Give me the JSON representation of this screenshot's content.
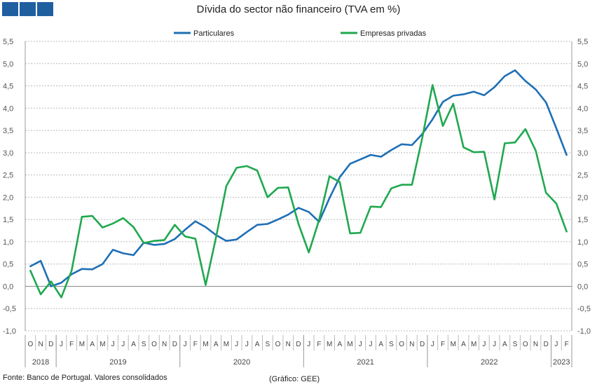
{
  "header": {
    "title": "Dívida do sector não financeiro (TVA em %)"
  },
  "footer": {
    "source": "Fonte: Banco de Portugal. Valores consolidados",
    "credit": "(Gráfico: GEE)"
  },
  "colors": {
    "particulares": "#1f6fb5",
    "empresas": "#1fa84f",
    "grid": "#bbbbbb",
    "logo": "#1f5fa0"
  },
  "chart_data": {
    "type": "line",
    "title": "Dívida do sector não financeiro (TVA em %)",
    "ylim": [
      -1.0,
      5.5
    ],
    "yticks": [
      "5,5",
      "5,0",
      "4,5",
      "4,0",
      "3,5",
      "3,0",
      "2,5",
      "2,0",
      "1,5",
      "1,0",
      "0,5",
      "0,0",
      "-0,5",
      "-1,0"
    ],
    "ytick_values": [
      5.5,
      5.0,
      4.5,
      4.0,
      3.5,
      3.0,
      2.5,
      2.0,
      1.5,
      1.0,
      0.5,
      0.0,
      -0.5,
      -1.0
    ],
    "grid": true,
    "legend_position": "top",
    "categories": [
      "O",
      "N",
      "D",
      "J",
      "F",
      "M",
      "A",
      "M",
      "J",
      "J",
      "A",
      "S",
      "O",
      "N",
      "D",
      "J",
      "F",
      "M",
      "A",
      "M",
      "J",
      "J",
      "A",
      "S",
      "O",
      "N",
      "D",
      "J",
      "F",
      "M",
      "A",
      "M",
      "J",
      "J",
      "A",
      "S",
      "O",
      "N",
      "D",
      "J",
      "F",
      "M",
      "A",
      "M",
      "J",
      "J",
      "A",
      "S",
      "O",
      "N",
      "D",
      "J",
      "F"
    ],
    "year_groups": [
      {
        "label": "2018",
        "count": 3
      },
      {
        "label": "2019",
        "count": 12
      },
      {
        "label": "2020",
        "count": 12
      },
      {
        "label": "2021",
        "count": 12
      },
      {
        "label": "2022",
        "count": 12
      },
      {
        "label": "2023",
        "count": 2
      }
    ],
    "series": [
      {
        "name": "Particulares",
        "color": "#1f6fb5",
        "values": [
          0.45,
          0.57,
          0.0,
          0.08,
          0.27,
          0.39,
          0.38,
          0.5,
          0.82,
          0.74,
          0.7,
          0.98,
          0.93,
          0.95,
          1.06,
          1.27,
          1.46,
          1.33,
          1.15,
          1.02,
          1.05,
          1.22,
          1.38,
          1.4,
          1.5,
          1.61,
          1.76,
          1.67,
          1.45,
          1.98,
          2.45,
          2.75,
          2.85,
          2.95,
          2.91,
          3.06,
          3.19,
          3.17,
          3.42,
          3.75,
          4.14,
          4.28,
          4.31,
          4.37,
          4.29,
          4.47,
          4.72,
          4.85,
          4.61,
          4.42,
          4.13,
          3.55,
          2.95
        ]
      },
      {
        "name": "Empresas privadas",
        "color": "#1fa84f",
        "values": [
          0.35,
          -0.18,
          0.11,
          -0.25,
          0.35,
          1.56,
          1.58,
          1.32,
          1.41,
          1.53,
          1.33,
          0.97,
          1.02,
          1.04,
          1.38,
          1.12,
          1.07,
          0.03,
          1.1,
          2.25,
          2.66,
          2.7,
          2.6,
          2.0,
          2.21,
          2.22,
          1.4,
          0.76,
          1.49,
          2.47,
          2.34,
          1.19,
          1.2,
          1.79,
          1.78,
          2.2,
          2.28,
          2.28,
          3.33,
          4.52,
          3.6,
          4.1,
          3.12,
          3.01,
          3.02,
          1.95,
          3.21,
          3.23,
          3.53,
          3.05,
          2.1,
          1.86,
          1.23
        ]
      }
    ]
  }
}
